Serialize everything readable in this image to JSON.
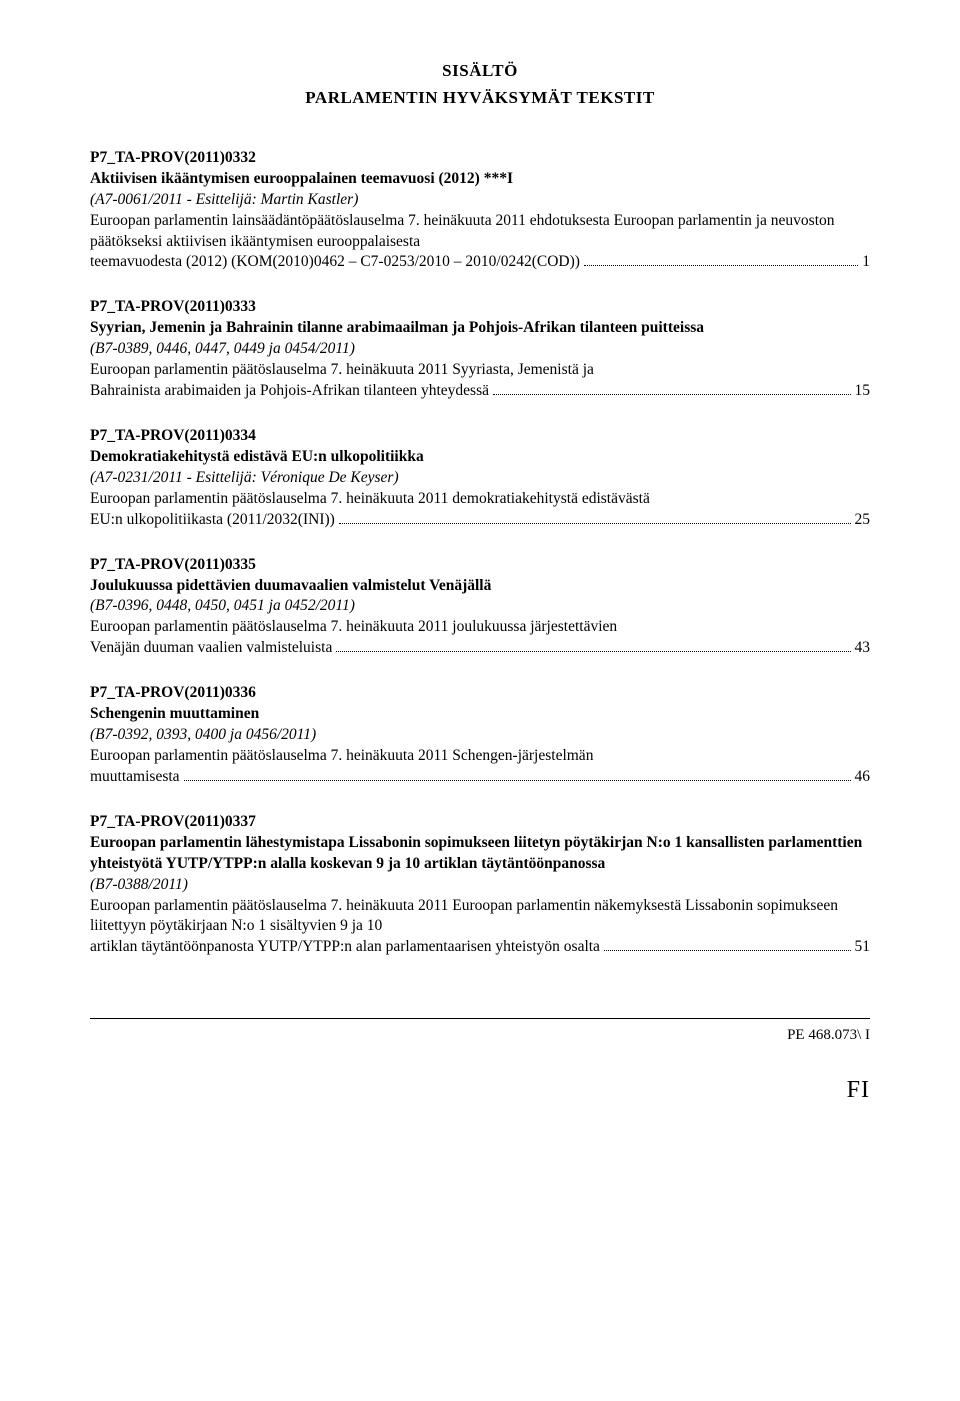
{
  "header": {
    "title1": "SISÄLTÖ",
    "title2": "PARLAMENTIN HYVÄKSYMÄT TEKSTIT"
  },
  "entries": [
    {
      "code": "P7_TA-PROV(2011)0332",
      "title": "Aktiivisen ikääntymisen eurooppalainen teemavuosi (2012) ***I",
      "source": "(A7-0061/2011 - Esittelijä: Martin Kastler)",
      "desc_pre": "Euroopan parlamentin lainsäädäntöpäätöslauselma 7. heinäkuuta 2011 ehdotuksesta Euroopan parlamentin ja neuvoston päätökseksi aktiivisen ikääntymisen eurooppalaisesta ",
      "desc_last": "teemavuodesta (2012) (KOM(2010)0462 – C7-0253/2010 – 2010/0242(COD))",
      "page": "1"
    },
    {
      "code": "P7_TA-PROV(2011)0333",
      "title": "Syyrian, Jemenin ja Bahrainin tilanne arabimaailman ja Pohjois-Afrikan tilanteen puitteissa",
      "source": "(B7-0389, 0446, 0447, 0449 ja 0454/2011)",
      "desc_pre": "Euroopan parlamentin päätöslauselma 7. heinäkuuta 2011 Syyriasta, Jemenistä ja ",
      "desc_last": "Bahrainista arabimaiden ja Pohjois-Afrikan tilanteen yhteydessä",
      "page": "15"
    },
    {
      "code": "P7_TA-PROV(2011)0334",
      "title": "Demokratiakehitystä edistävä EU:n ulkopolitiikka",
      "source": "(A7-0231/2011 - Esittelijä: Véronique De Keyser)",
      "desc_pre": "Euroopan parlamentin päätöslauselma 7. heinäkuuta 2011 demokratiakehitystä edistävästä ",
      "desc_last": "EU:n ulkopolitiikasta (2011/2032(INI))",
      "page": "25"
    },
    {
      "code": "P7_TA-PROV(2011)0335",
      "title": "Joulukuussa pidettävien duumavaalien valmistelut Venäjällä",
      "source": "(B7-0396, 0448, 0450, 0451 ja 0452/2011)",
      "desc_pre": "Euroopan parlamentin päätöslauselma 7. heinäkuuta 2011 joulukuussa järjestettävien ",
      "desc_last": "Venäjän duuman vaalien valmisteluista",
      "page": "43"
    },
    {
      "code": "P7_TA-PROV(2011)0336",
      "title": "Schengenin muuttaminen",
      "source": "(B7-0392, 0393, 0400 ja 0456/2011)",
      "desc_pre": "Euroopan parlamentin päätöslauselma 7. heinäkuuta 2011 Schengen-järjestelmän ",
      "desc_last": "muuttamisesta",
      "page": "46"
    },
    {
      "code": "P7_TA-PROV(2011)0337",
      "title": "Euroopan parlamentin lähestymistapa Lissabonin sopimukseen liitetyn pöytäkirjan N:o 1 kansallisten parlamenttien yhteistyötä YUTP/YTPP:n alalla koskevan 9 ja 10 artiklan täytäntöönpanossa",
      "source": "(B7-0388/2011)",
      "desc_pre": "Euroopan parlamentin päätöslauselma 7. heinäkuuta 2011 Euroopan parlamentin näkemyksestä Lissabonin sopimukseen liitettyyn pöytäkirjaan N:o 1 sisältyvien 9 ja 10 ",
      "desc_last": "artiklan täytäntöönpanosta YUTP/YTPP:n alan parlamentaarisen yhteistyön osalta",
      "page": "51"
    }
  ],
  "footer": {
    "ref": "PE 468.073\\ I",
    "lang": "FI"
  }
}
